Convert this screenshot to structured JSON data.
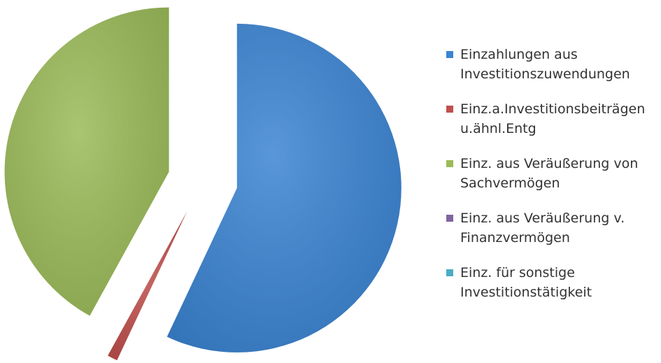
{
  "chart_data": {
    "type": "pie",
    "series": [
      {
        "name": "Einzahlungen aus\nInvestitionszuwendungen",
        "color": "#3b84d2",
        "values": [
          57
        ]
      },
      {
        "name": "Einz.a.Investitionsbeiträgen\nu.ähnl.Entg",
        "color": "#c0504d",
        "values": [
          1
        ]
      },
      {
        "name": "Einz. aus Veräußerung von\nSachvermögen",
        "color": "#9bbb59",
        "values": [
          42
        ]
      },
      {
        "name": "Einz. aus Veräußerung v.\nFinanzvermögen",
        "color": "#8064a2",
        "values": [
          0
        ]
      },
      {
        "name": "Einz. für sonstige\nInvestitionstätigkeit",
        "color": "#4bacc6",
        "values": [
          0
        ]
      }
    ],
    "legend": "right"
  }
}
